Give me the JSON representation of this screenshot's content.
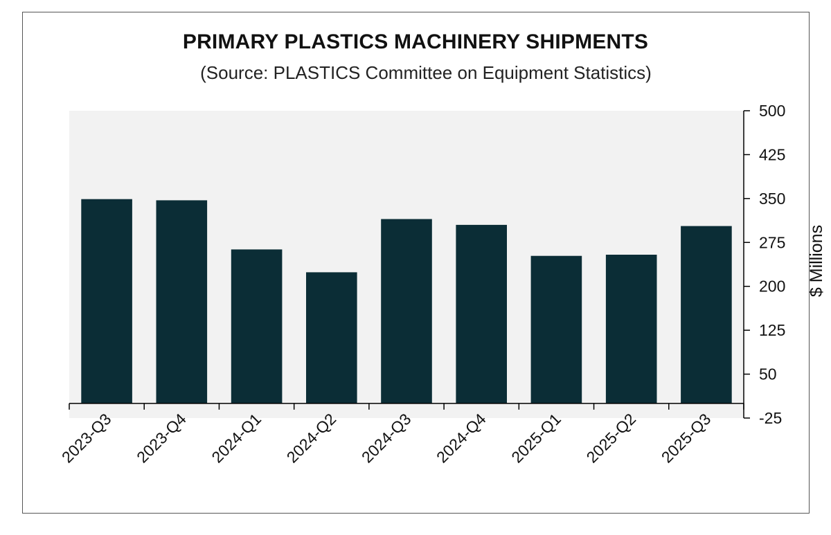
{
  "chart_data": {
    "type": "bar",
    "title": "PRIMARY PLASTICS MACHINERY SHIPMENTS",
    "subtitle": "(Source: PLASTICS Committee on Equipment Statistics)",
    "categories": [
      "2023-Q3",
      "2023-Q4",
      "2024-Q1",
      "2024-Q2",
      "2024-Q3",
      "2024-Q4",
      "2025-Q1",
      "2025-Q2",
      "2025-Q3"
    ],
    "values": [
      349,
      347,
      263,
      224,
      315,
      305,
      252,
      254,
      303
    ],
    "xlabel": "",
    "ylabel": "$ Millions",
    "ylim": [
      -25,
      500
    ],
    "yticks": [
      -25,
      50,
      125,
      200,
      275,
      350,
      425,
      500
    ],
    "ytick_labels": [
      "-25",
      "50",
      "125",
      "200",
      "275",
      "350",
      "425",
      "500"
    ],
    "y_axis_side": "right",
    "bar_color": "#0b2d36",
    "plot_background": "#f2f2f2",
    "grid": false,
    "legend": "none"
  }
}
